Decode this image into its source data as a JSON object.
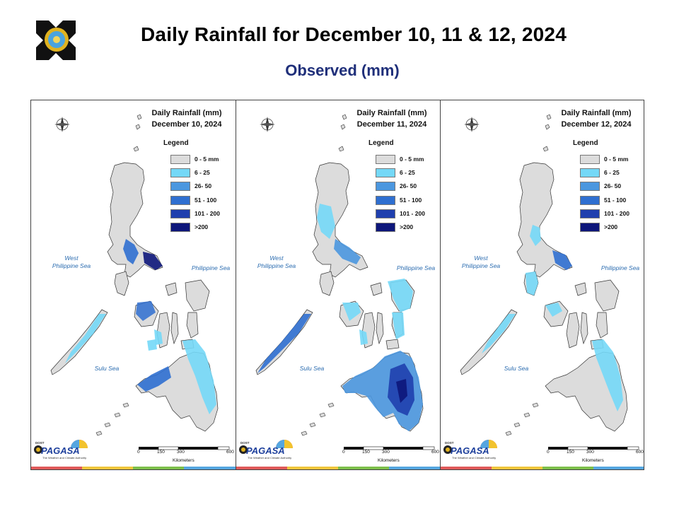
{
  "title": "Daily Rainfall for December 10, 11 & 12, 2024",
  "subtitle": "Observed (mm)",
  "panels": [
    {
      "heading": "Daily Rainfall (mm)",
      "date": "December 10, 2024"
    },
    {
      "heading": "Daily Rainfall (mm)",
      "date": "December 11, 2024"
    },
    {
      "heading": "Daily Rainfall (mm)",
      "date": "December 12, 2024"
    }
  ],
  "legend": {
    "title": "Legend",
    "items": [
      {
        "label": "0 - 5 mm",
        "color": "#dcdcdc"
      },
      {
        "label": "6 - 25",
        "color": "#74d8f7"
      },
      {
        "label": "26- 50",
        "color": "#4b97df"
      },
      {
        "label": "51 - 100",
        "color": "#2f6fd0"
      },
      {
        "label": "101 - 200",
        "color": "#1f3fae"
      },
      {
        "label": ">200",
        "color": "#0d167a"
      }
    ]
  },
  "seas": {
    "west": "West\nPhilippine Sea",
    "philippine": "Philippine Sea",
    "sulu": "Sulu Sea"
  },
  "compass": {
    "n": "N",
    "s": "S",
    "e": "E",
    "w": "W"
  },
  "scale": {
    "ticks": [
      "0",
      "150",
      "300",
      "600"
    ],
    "unit": "Kilometers"
  },
  "brand": {
    "dost": "DOST",
    "name": "PAGASA",
    "tagline": "The Weather and Climate Authority",
    "footer_colors": [
      "#e05a5a",
      "#f0c63c",
      "#7dc04b",
      "#55a6e0"
    ]
  }
}
